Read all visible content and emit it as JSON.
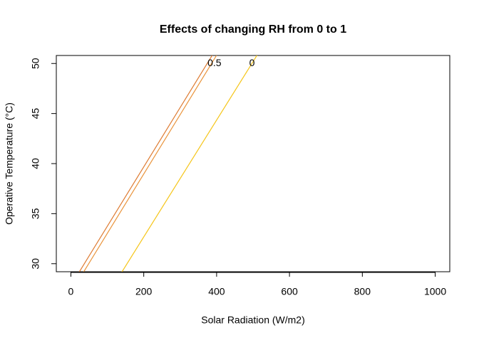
{
  "chart_data": {
    "type": "line",
    "title": "Effects of changing RH from 0 to 1",
    "xlabel": "Solar Radiation (W/m2)",
    "ylabel": "Operative Temperature (°C)",
    "xlim": [
      -40,
      1040
    ],
    "ylim": [
      29.2,
      50.8
    ],
    "xticks": [
      0,
      200,
      400,
      600,
      800,
      1000
    ],
    "yticks": [
      30,
      35,
      40,
      45,
      50
    ],
    "series": [
      {
        "color": "#de7a30",
        "x": [
          20,
          391
        ],
        "values": [
          29,
          51
        ]
      },
      {
        "color": "#e9933a",
        "x": [
          32,
          403
        ],
        "values": [
          29,
          51
        ]
      },
      {
        "color": "#f5c518",
        "x": [
          137,
          514
        ],
        "values": [
          29,
          51
        ]
      }
    ],
    "annotations": [
      {
        "text": "0.5",
        "x": 394,
        "y": 50
      },
      {
        "text": "0",
        "x": 497,
        "y": 50
      }
    ]
  }
}
